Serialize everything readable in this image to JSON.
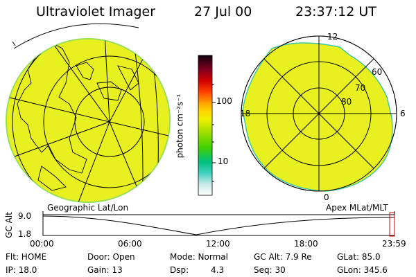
{
  "header": {
    "title": "Ultraviolet Imager",
    "date": "27 Jul 00",
    "time": "23:37:12 UT"
  },
  "colorbar": {
    "label": "photon cm⁻²s⁻¹",
    "ticks": [
      "100",
      "10"
    ]
  },
  "left_panel": {
    "caption": "Geographic Lat/Lon",
    "fill_color": "#e8f020"
  },
  "right_panel": {
    "caption": "Apex MLat/MLT",
    "mlt_labels": {
      "top": "12",
      "left": "18",
      "right": "6",
      "bottom": "0"
    },
    "mlat_labels": [
      "60",
      "70",
      "80"
    ],
    "fill_color": "#e8f020"
  },
  "timeline": {
    "axis_label": "GC Alt",
    "y_max": "9.0",
    "y_min": "1.8",
    "times": [
      "00:00",
      "06:00",
      "12:00",
      "18:00",
      "23:59"
    ]
  },
  "info": {
    "row1": {
      "flt": "Flt: HOME",
      "door": "Door: Open",
      "mode": "Mode: Normal",
      "gcalt": "GC Alt: 7.9 Re",
      "glat": "GLat:  85.0"
    },
    "row2": {
      "ip": "IP: 18.0",
      "gain": "Gain: 13",
      "dsp": "Dsp:",
      "dsp_val": "4.3",
      "seq": "Seq: 30",
      "glon": "GLon: 345.6"
    }
  }
}
